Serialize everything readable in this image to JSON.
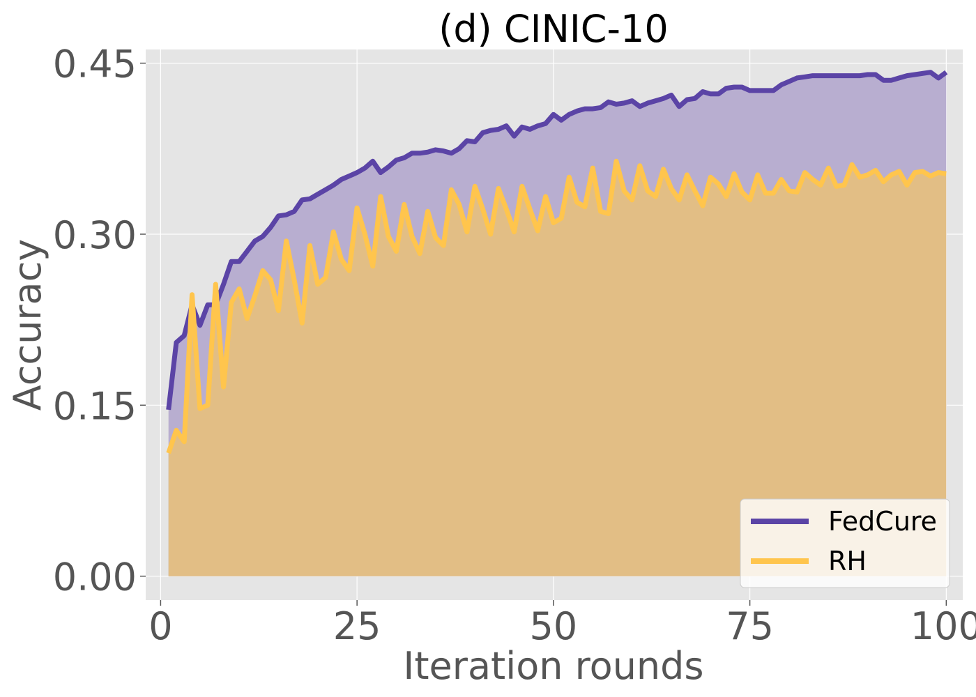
{
  "chart_data": {
    "type": "line",
    "title": "(d) CINIC-10",
    "xlabel": "Iteration rounds",
    "ylabel": "Accuracy",
    "xlim": [
      -1.9,
      102.1
    ],
    "ylim": [
      -0.021,
      0.462
    ],
    "xticks": [
      0,
      25,
      50,
      75,
      100
    ],
    "xtick_labels": [
      "0",
      "25",
      "50",
      "75",
      "100"
    ],
    "yticks": [
      0.0,
      0.15,
      0.3,
      0.45
    ],
    "ytick_labels": [
      "0.00",
      "0.15",
      "0.30",
      "0.45"
    ],
    "grid": true,
    "legend_position": "lower-right",
    "fill_under_series": true,
    "x": [
      1,
      2,
      3,
      4,
      5,
      6,
      7,
      8,
      9,
      10,
      11,
      12,
      13,
      14,
      15,
      16,
      17,
      18,
      19,
      20,
      21,
      22,
      23,
      24,
      25,
      26,
      27,
      28,
      29,
      30,
      31,
      32,
      33,
      34,
      35,
      36,
      37,
      38,
      39,
      40,
      41,
      42,
      43,
      44,
      45,
      46,
      47,
      48,
      49,
      50,
      51,
      52,
      53,
      54,
      55,
      56,
      57,
      58,
      59,
      60,
      61,
      62,
      63,
      64,
      65,
      66,
      67,
      68,
      69,
      70,
      71,
      72,
      73,
      74,
      75,
      76,
      77,
      78,
      79,
      80,
      81,
      82,
      83,
      84,
      85,
      86,
      87,
      88,
      89,
      90,
      91,
      92,
      93,
      94,
      95,
      96,
      97,
      98,
      99,
      100
    ],
    "series": [
      {
        "name": "FedCure",
        "color": "#5b44a6",
        "fill": "#b8aed0",
        "values": [
          0.146,
          0.205,
          0.211,
          0.238,
          0.22,
          0.238,
          0.238,
          0.256,
          0.276,
          0.276,
          0.285,
          0.294,
          0.298,
          0.306,
          0.316,
          0.317,
          0.32,
          0.33,
          0.331,
          0.335,
          0.339,
          0.343,
          0.348,
          0.351,
          0.354,
          0.358,
          0.364,
          0.354,
          0.359,
          0.365,
          0.367,
          0.371,
          0.371,
          0.372,
          0.374,
          0.373,
          0.371,
          0.375,
          0.382,
          0.381,
          0.389,
          0.391,
          0.392,
          0.395,
          0.386,
          0.394,
          0.392,
          0.395,
          0.397,
          0.405,
          0.4,
          0.405,
          0.408,
          0.41,
          0.41,
          0.411,
          0.416,
          0.414,
          0.415,
          0.417,
          0.412,
          0.415,
          0.417,
          0.419,
          0.422,
          0.412,
          0.418,
          0.419,
          0.425,
          0.423,
          0.423,
          0.428,
          0.429,
          0.429,
          0.426,
          0.426,
          0.426,
          0.426,
          0.431,
          0.434,
          0.437,
          0.438,
          0.439,
          0.439,
          0.439,
          0.439,
          0.439,
          0.439,
          0.439,
          0.44,
          0.44,
          0.435,
          0.435,
          0.437,
          0.439,
          0.44,
          0.441,
          0.442,
          0.437,
          0.442
        ]
      },
      {
        "name": "RH",
        "color": "#ffc54d",
        "fill": "#e2be85",
        "values": [
          0.108,
          0.128,
          0.118,
          0.247,
          0.147,
          0.15,
          0.256,
          0.166,
          0.24,
          0.252,
          0.226,
          0.246,
          0.268,
          0.26,
          0.233,
          0.294,
          0.26,
          0.222,
          0.29,
          0.256,
          0.262,
          0.302,
          0.278,
          0.268,
          0.323,
          0.3,
          0.272,
          0.333,
          0.298,
          0.285,
          0.326,
          0.298,
          0.283,
          0.32,
          0.297,
          0.29,
          0.339,
          0.326,
          0.302,
          0.342,
          0.322,
          0.3,
          0.34,
          0.322,
          0.302,
          0.342,
          0.322,
          0.303,
          0.333,
          0.31,
          0.314,
          0.35,
          0.328,
          0.324,
          0.358,
          0.32,
          0.318,
          0.364,
          0.338,
          0.33,
          0.36,
          0.338,
          0.333,
          0.357,
          0.34,
          0.33,
          0.352,
          0.338,
          0.325,
          0.35,
          0.344,
          0.333,
          0.353,
          0.337,
          0.33,
          0.352,
          0.336,
          0.336,
          0.348,
          0.338,
          0.337,
          0.354,
          0.348,
          0.343,
          0.358,
          0.342,
          0.343,
          0.361,
          0.35,
          0.352,
          0.356,
          0.346,
          0.352,
          0.355,
          0.343,
          0.354,
          0.355,
          0.351,
          0.354,
          0.353
        ]
      }
    ]
  },
  "colors": {
    "plot_background": "#e5e5e5",
    "grid": "#ffffff",
    "legend_background": "#ffffff"
  }
}
